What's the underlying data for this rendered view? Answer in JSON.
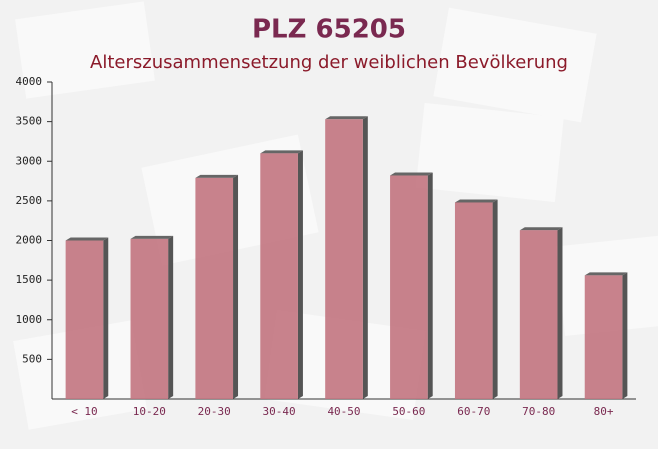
{
  "chart_data": {
    "type": "bar",
    "title": "PLZ 65205",
    "subtitle": "Alterszusammensetzung der weiblichen Bevölkerung",
    "categories": [
      "< 10",
      "10-20",
      "20-30",
      "30-40",
      "40-50",
      "50-60",
      "60-70",
      "70-80",
      "80+"
    ],
    "values": [
      2000,
      2020,
      2790,
      3100,
      3530,
      2820,
      2480,
      2130,
      1560
    ],
    "color": "#c27480",
    "ylim": [
      0,
      4000
    ],
    "yticks": [
      500,
      1000,
      1500,
      2000,
      2500,
      3000,
      3500,
      4000
    ]
  }
}
